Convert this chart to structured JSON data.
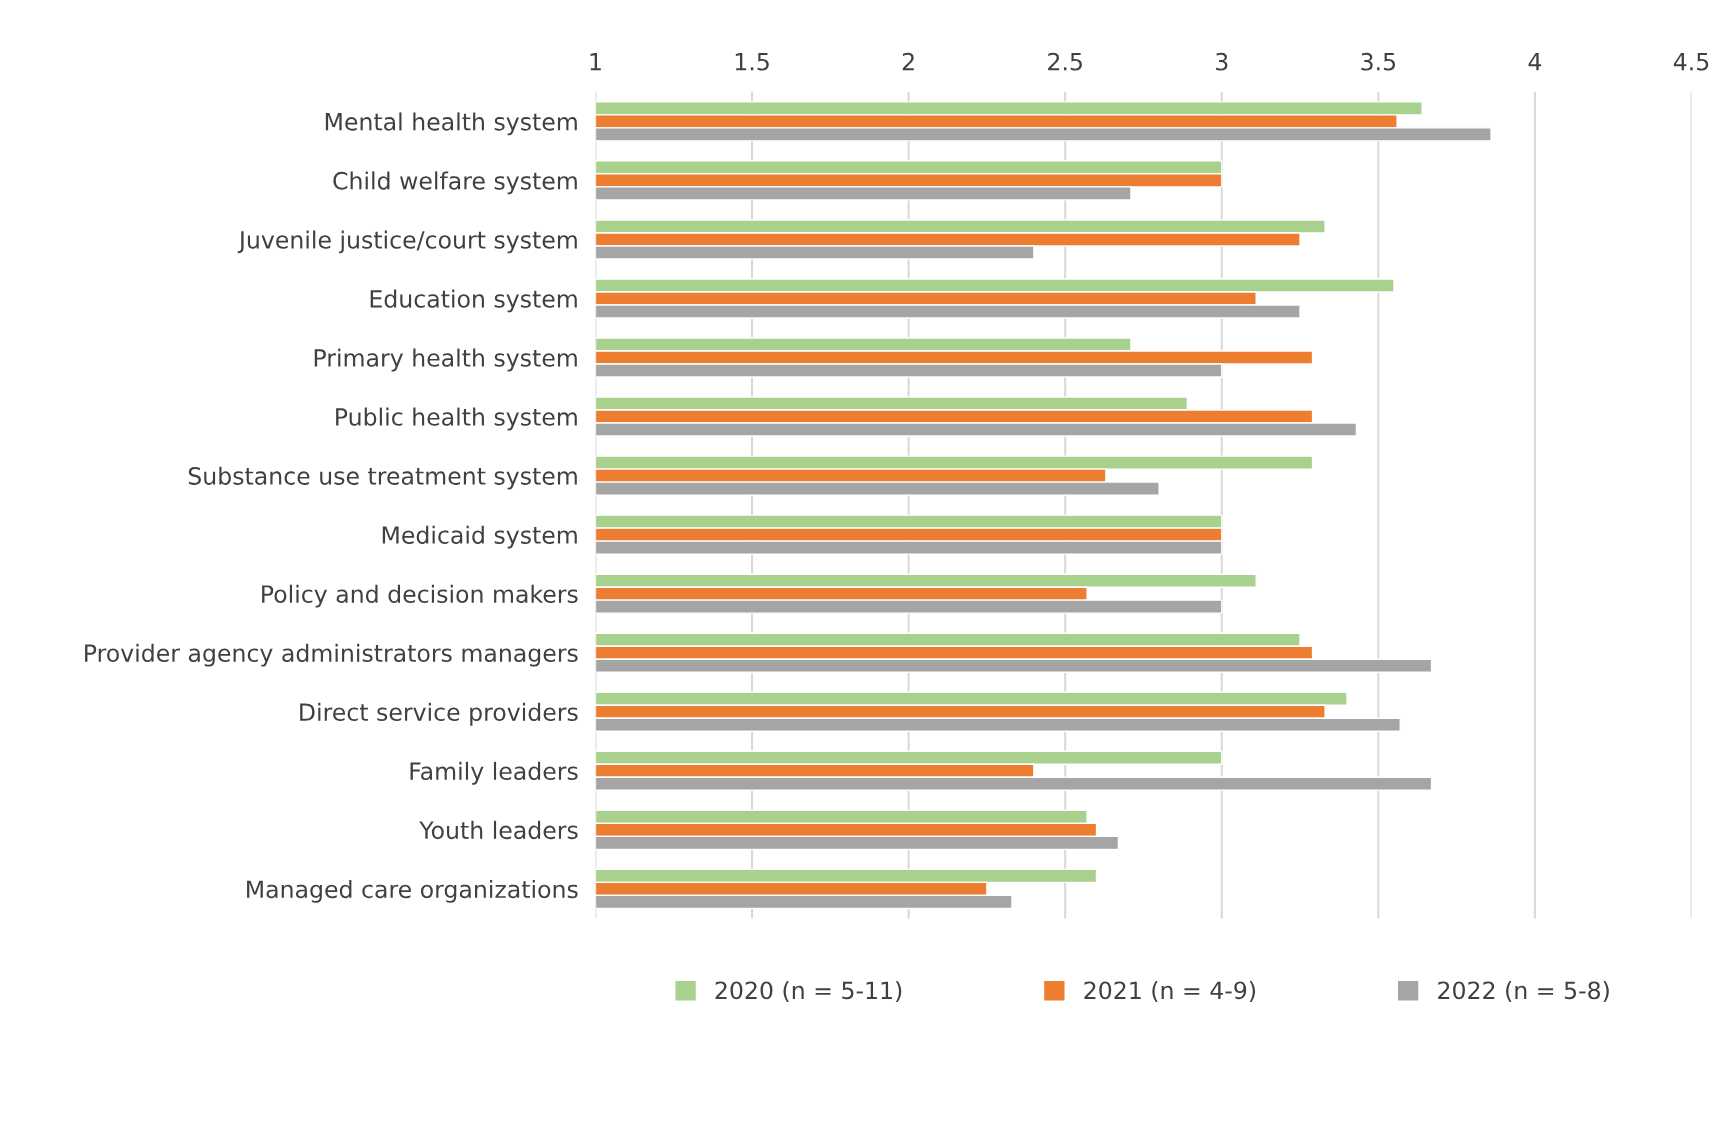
{
  "chart_data": {
    "type": "bar",
    "orientation": "horizontal",
    "categories": [
      "Mental health system",
      "Child welfare system",
      "Juvenile justice/court system",
      "Education system",
      "Primary health system",
      "Public health system",
      "Substance use treatment system",
      "Medicaid system",
      "Policy and decision makers",
      "Provider agency administrators managers",
      "Direct service providers",
      "Family leaders",
      "Youth leaders",
      "Managed care organizations"
    ],
    "series": [
      {
        "name": "2020 (n = 5-11)",
        "color": "#a9d18e",
        "values": [
          3.64,
          3.0,
          3.33,
          3.55,
          2.71,
          2.89,
          3.29,
          3.0,
          3.11,
          3.25,
          3.4,
          3.0,
          2.57,
          2.6
        ]
      },
      {
        "name": "2021 (n = 4-9)",
        "color": "#ed7d31",
        "values": [
          3.56,
          3.0,
          3.25,
          3.11,
          3.29,
          3.29,
          2.63,
          3.0,
          2.57,
          3.29,
          3.33,
          2.4,
          2.6,
          2.25
        ]
      },
      {
        "name": "2022 (n = 5-8)",
        "color": "#a5a5a5",
        "values": [
          3.86,
          2.71,
          2.4,
          3.25,
          3.0,
          3.43,
          2.8,
          3.0,
          3.0,
          3.67,
          3.57,
          3.67,
          2.67,
          2.33
        ]
      }
    ],
    "xlim": [
      1,
      4.5
    ],
    "xticks": [
      1,
      1.5,
      2,
      2.5,
      3,
      3.5,
      4,
      4.5
    ],
    "grid": "x",
    "legend": "bottom"
  }
}
